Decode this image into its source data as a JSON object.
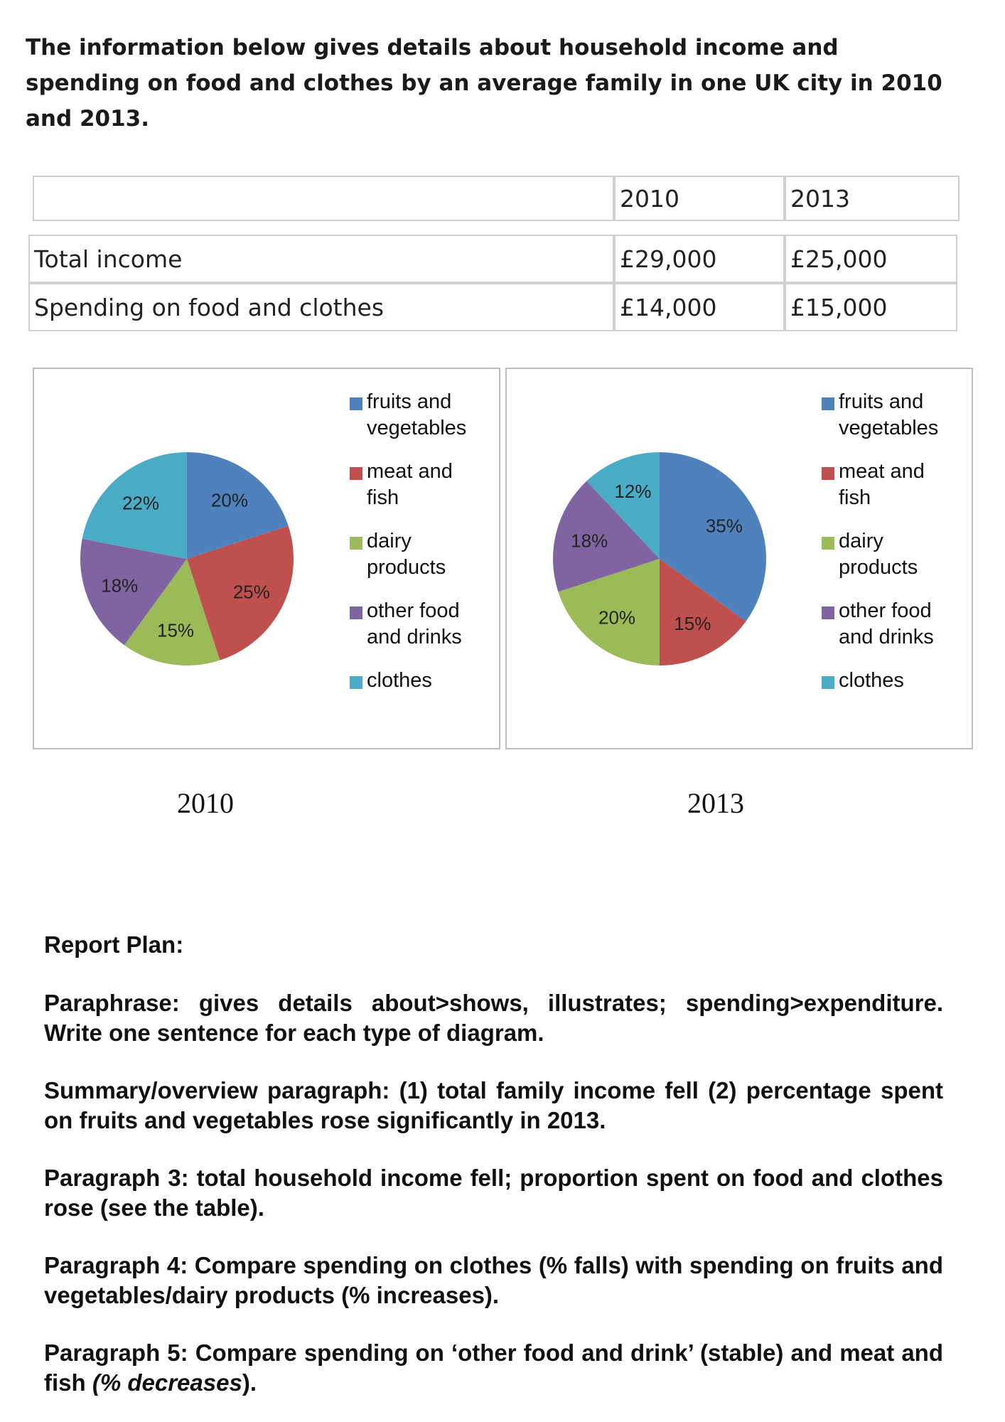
{
  "title": "The information below gives details about household income and spending on food and clothes by an average family in one UK  city in 2010 and 2013.",
  "table": {
    "headers": [
      "",
      "2010",
      "2013"
    ],
    "rows": [
      {
        "label": "Total income",
        "v2010": "£29,000",
        "v2013": "£25,000"
      },
      {
        "label": "Spending on food and clothes",
        "v2010": "£14,000",
        "v2013": "£15,000"
      }
    ]
  },
  "chart_data": [
    {
      "type": "pie",
      "title": "2010",
      "categories": [
        "fruits and vegetables",
        "meat and fish",
        "dairy products",
        "other food and drinks",
        "clothes"
      ],
      "values": [
        20,
        25,
        15,
        18,
        22
      ],
      "labels": [
        "20%",
        "25%",
        "15%",
        "18%",
        "22%"
      ],
      "colors": [
        "#4F81BD",
        "#C0504D",
        "#9BBB59",
        "#8064A2",
        "#4BACC6"
      ],
      "legend": [
        "fruits and\nvegetables",
        "meat and\nfish",
        "dairy\nproducts",
        "other food\nand drinks",
        "clothes"
      ],
      "legend_placement": "right"
    },
    {
      "type": "pie",
      "title": "2013",
      "categories": [
        "fruits and vegetables",
        "meat and fish",
        "dairy products",
        "other food and drinks",
        "clothes"
      ],
      "values": [
        35,
        15,
        20,
        18,
        12
      ],
      "labels": [
        "35%",
        "15%",
        "20%",
        "18%",
        "12%"
      ],
      "colors": [
        "#4F81BD",
        "#C0504D",
        "#9BBB59",
        "#8064A2",
        "#4BACC6"
      ],
      "legend": [
        "fruits and\nvegetables",
        "meat and\nfish",
        "dairy\nproducts",
        "other food\nand drinks",
        "clothes"
      ],
      "legend_placement": "right"
    }
  ],
  "report": {
    "heading": "Report Plan:",
    "p1": "Paraphrase: gives details about>shows, illustrates; spending>expenditure. Write one sentence for each type of diagram.",
    "p2": "Summary/overview paragraph: (1) total family income fell (2) percentage spent on fruits and vegetables rose significantly in 2013.",
    "p3": "Paragraph 3: total household income fell; proportion spent on food and clothes rose (see the table).",
    "p4": "Paragraph 4: Compare spending on clothes (% falls) with spending on fruits and vegetables/dairy products (% increases).",
    "p5a": "Paragraph 5: Compare spending on ‘other food and drink’ (stable) and meat and fish ",
    "p5b": "(% decreases",
    "p5c": ")."
  }
}
